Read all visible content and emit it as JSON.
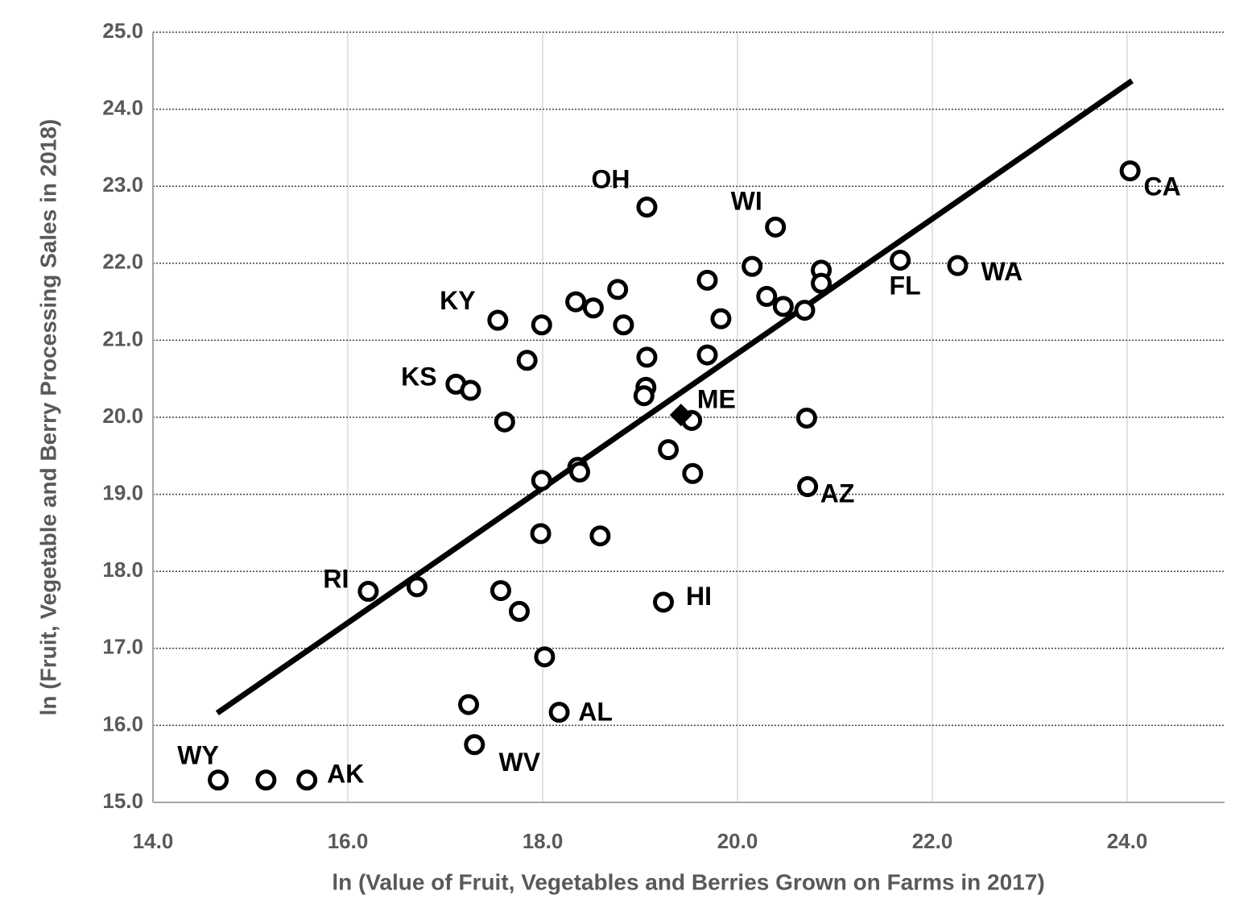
{
  "chart_data": {
    "type": "scatter",
    "x_label": "ln (Value of Fruit, Vegetables and Berries Grown on Farms in 2017)",
    "y_label": "ln (Fruit, Vegetable and Berry Processing Sales in 2018)",
    "xlim": [
      14,
      25
    ],
    "ylim": [
      15,
      25
    ],
    "xticks": [
      {
        "value": 14,
        "label": "14.0"
      },
      {
        "value": 16,
        "label": "16.0"
      },
      {
        "value": 18,
        "label": "18.0"
      },
      {
        "value": 20,
        "label": "20.0"
      },
      {
        "value": 22,
        "label": "22.0"
      },
      {
        "value": 24,
        "label": "24.0"
      }
    ],
    "yticks": [
      {
        "value": 15,
        "label": "15.0"
      },
      {
        "value": 16,
        "label": "16.0"
      },
      {
        "value": 17,
        "label": "17.0"
      },
      {
        "value": 18,
        "label": "18.0"
      },
      {
        "value": 19,
        "label": "19.0"
      },
      {
        "value": 20,
        "label": "20.0"
      },
      {
        "value": 21,
        "label": "21.0"
      },
      {
        "value": 22,
        "label": "22.0"
      },
      {
        "value": 23,
        "label": "23.0"
      },
      {
        "value": 24,
        "label": "24.0"
      },
      {
        "value": 25,
        "label": "25.0"
      }
    ],
    "grid": {
      "y": "dotted",
      "x": "solid"
    },
    "series": [
      {
        "marker": "circle",
        "color": "#000000",
        "x": [
          14.67,
          15.16,
          15.58,
          16.21,
          16.71,
          17.11,
          17.26,
          17.54,
          17.61,
          17.84,
          17.99,
          17.99,
          17.98,
          17.57,
          17.76,
          18.02,
          17.24,
          17.3,
          18.17,
          18.36,
          18.38,
          18.34,
          18.52,
          18.77,
          18.83,
          18.59,
          19.07,
          19.07,
          19.06,
          19.04,
          19.29,
          19.24,
          19.53,
          19.54,
          19.69,
          19.69,
          19.83,
          20.15,
          20.39,
          20.3,
          20.47,
          20.69,
          20.71,
          20.72,
          20.86,
          20.86,
          21.67,
          22.26,
          24.03
        ],
        "y": [
          15.29,
          15.29,
          15.29,
          17.74,
          17.8,
          20.43,
          20.35,
          21.26,
          19.94,
          20.74,
          21.2,
          19.18,
          18.49,
          17.75,
          17.48,
          16.89,
          16.27,
          15.75,
          16.17,
          19.35,
          19.29,
          21.5,
          21.42,
          21.66,
          21.2,
          18.46,
          22.73,
          20.78,
          20.39,
          20.28,
          19.58,
          17.6,
          19.96,
          19.27,
          21.78,
          20.81,
          21.28,
          21.96,
          22.47,
          21.57,
          21.44,
          21.39,
          19.99,
          19.1,
          21.91,
          21.74,
          22.04,
          21.97,
          23.2
        ],
        "labels": [
          "WY",
          null,
          "AK",
          "RI",
          null,
          "KS",
          null,
          "KY",
          null,
          null,
          null,
          null,
          null,
          null,
          null,
          null,
          null,
          "WV",
          "AL",
          null,
          null,
          null,
          null,
          null,
          null,
          null,
          "OH",
          null,
          null,
          null,
          null,
          "HI",
          null,
          null,
          null,
          null,
          null,
          null,
          "WI",
          null,
          null,
          null,
          null,
          "AZ",
          null,
          null,
          "FL",
          "WA",
          "CA"
        ]
      },
      {
        "marker": "diamond",
        "color": "#000000",
        "x": [
          19.42
        ],
        "y": [
          20.03
        ],
        "labels": [
          "ME"
        ]
      }
    ],
    "trendline": {
      "color": "#000000",
      "x": [
        14.66,
        24.05
      ],
      "y": [
        16.16,
        24.37
      ]
    }
  }
}
